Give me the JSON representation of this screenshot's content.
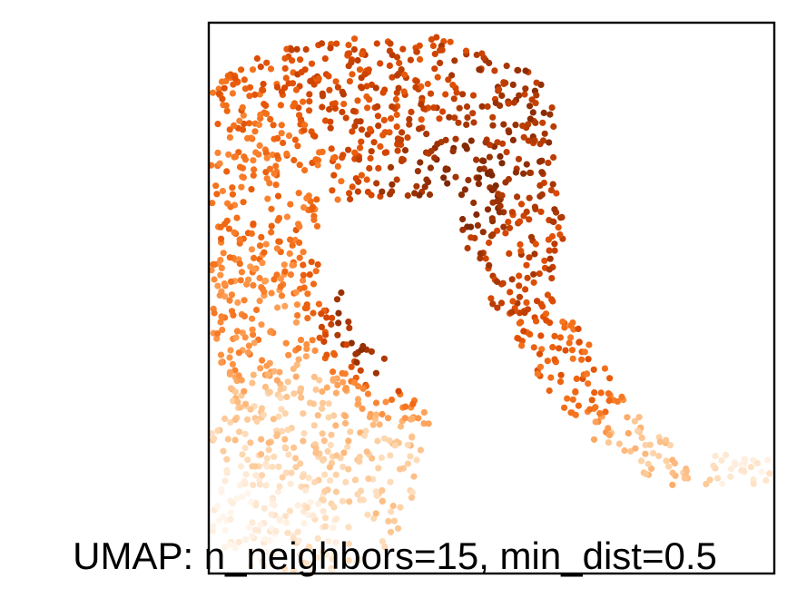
{
  "chart_data": {
    "type": "scatter",
    "title": "UMAP: n_neighbors=15, min_dist=0.5",
    "xlabel": "",
    "ylabel": "",
    "axes_visible": false,
    "grid": false,
    "legend": "none",
    "colormap": "Oranges",
    "colormap_stops": [
      "#fff5eb",
      "#fee6ce",
      "#fdd0a2",
      "#fdae6b",
      "#fd8d3c",
      "#f16913",
      "#d94801",
      "#a63603",
      "#7f2704"
    ],
    "xlim": [
      0,
      10
    ],
    "ylim": [
      0,
      10
    ],
    "point_count": 1500,
    "structure": "a single curved, hook-shaped manifold: a broad arch at the top (dark orange to dark brown), a left arm descending into a wide pale blob at the bottom, and a long tail sweeping down and to the right; colour fades from dark brown in the inner arch to near-white in the lower blob and tail tip",
    "anchor_points": [
      {
        "x": 0.5,
        "y": 0.6,
        "c": 0.02
      },
      {
        "x": 1.8,
        "y": 0.6,
        "c": 0.1
      },
      {
        "x": 3.0,
        "y": 1.5,
        "c": 0.25
      },
      {
        "x": 1.5,
        "y": 2.8,
        "c": 0.25
      },
      {
        "x": 0.8,
        "y": 4.5,
        "c": 0.5
      },
      {
        "x": 1.0,
        "y": 7.0,
        "c": 0.6
      },
      {
        "x": 3.0,
        "y": 8.8,
        "c": 0.75
      },
      {
        "x": 5.8,
        "y": 8.3,
        "c": 0.88
      },
      {
        "x": 5.6,
        "y": 6.0,
        "c": 0.8
      },
      {
        "x": 6.8,
        "y": 4.0,
        "c": 0.65
      },
      {
        "x": 8.0,
        "y": 2.0,
        "c": 0.3
      },
      {
        "x": 9.8,
        "y": 1.8,
        "c": 0.08
      },
      {
        "x": 3.0,
        "y": 4.5,
        "c": 0.9
      },
      {
        "x": 4.5,
        "y": 7.0,
        "c": 0.95
      }
    ]
  }
}
